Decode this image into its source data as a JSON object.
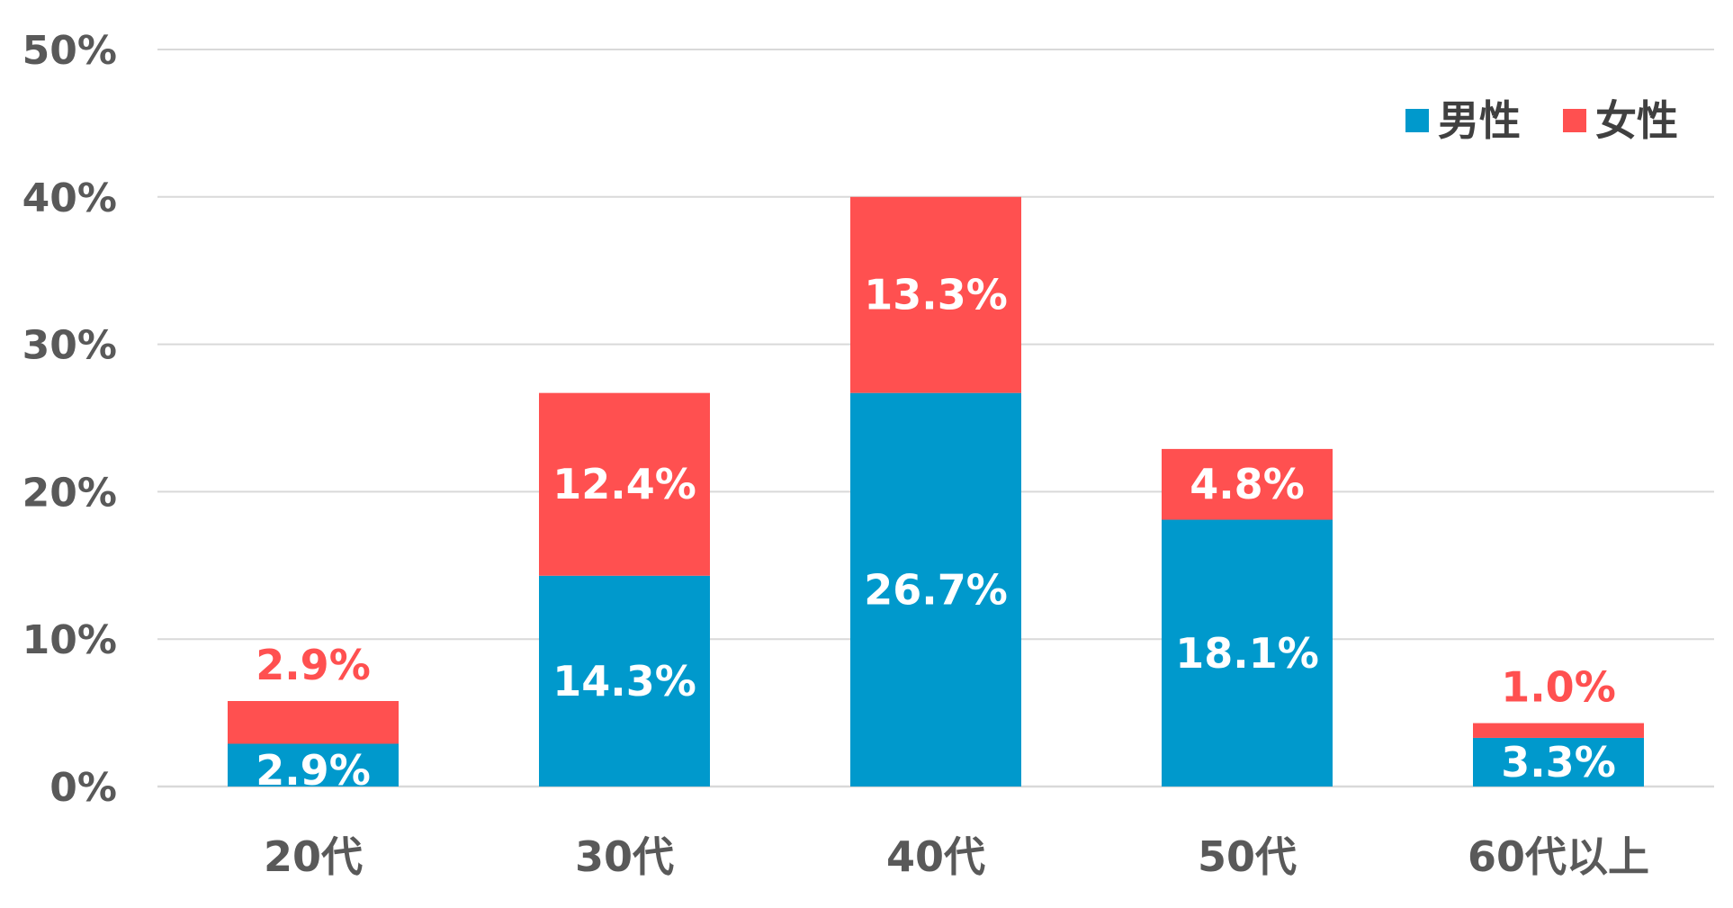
{
  "chart_data": {
    "type": "bar",
    "stacked": true,
    "categories": [
      "20代",
      "30代",
      "40代",
      "50代",
      "60代以上"
    ],
    "series": [
      {
        "name": "男性",
        "color": "#0099CC",
        "values": [
          2.9,
          14.3,
          26.7,
          18.1,
          3.3
        ],
        "labels": [
          "2.9%",
          "14.3%",
          "26.7%",
          "18.1%",
          "3.3%"
        ]
      },
      {
        "name": "女性",
        "color": "#FF5050",
        "values": [
          2.9,
          12.4,
          13.3,
          4.8,
          1.0
        ],
        "labels": [
          "2.9%",
          "12.4%",
          "13.3%",
          "4.8%",
          "1.0%"
        ]
      }
    ],
    "yticks": [
      "0%",
      "10%",
      "20%",
      "30%",
      "40%",
      "50%"
    ],
    "ylim": [
      0,
      50
    ],
    "grid": true,
    "legend_position": "top-right",
    "title": "",
    "xlabel": "",
    "ylabel": ""
  }
}
